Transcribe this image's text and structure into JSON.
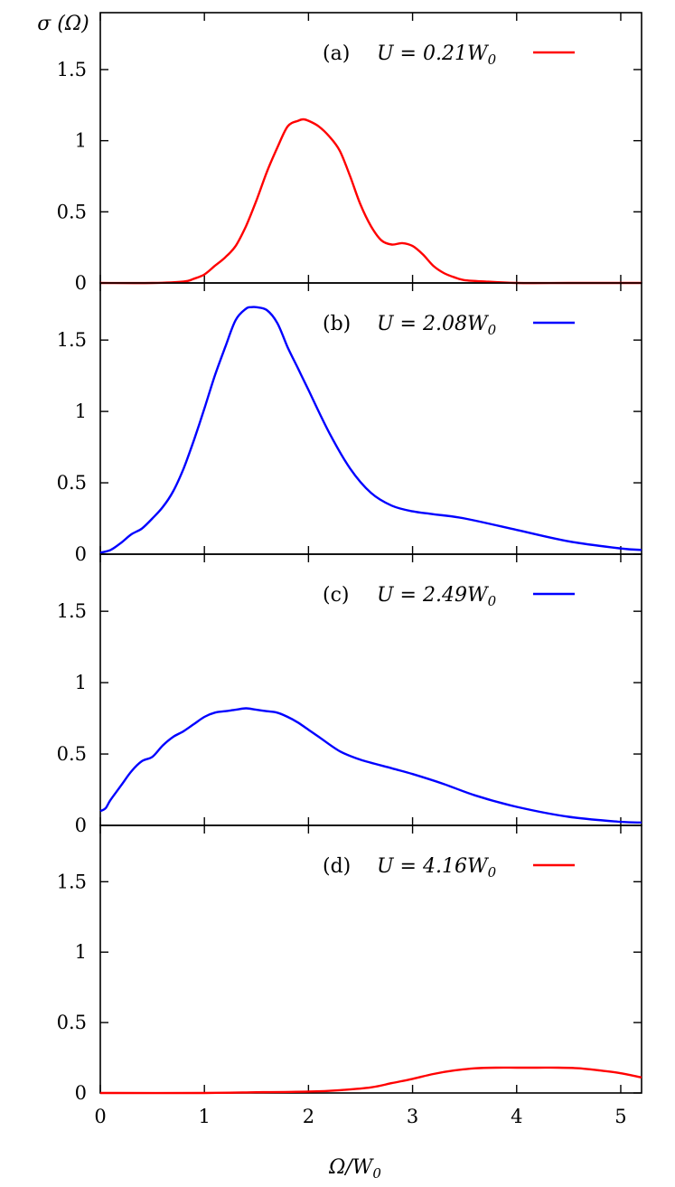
{
  "figure": {
    "ylabel": "σ (Ω)",
    "xlabel": "Ω/W",
    "xlabel_sub": "0",
    "colors": {
      "axis": "#000000",
      "red": "#ff0000",
      "blue": "#0000ff"
    }
  },
  "chart_data": [
    {
      "type": "line",
      "panel_label": "(a)",
      "legend": {
        "prefix": "U = 0.21W",
        "sub": "0",
        "color": "#ff0000",
        "placement": "top-right"
      },
      "xlim": [
        0,
        5.2
      ],
      "ylim": [
        0,
        1.9
      ],
      "yticks": [
        0,
        0.5,
        1,
        1.5
      ],
      "ytick_labels": [
        "0",
        "0.5",
        "1",
        "1.5"
      ],
      "xticks": [
        0,
        1,
        2,
        3,
        4,
        5
      ],
      "series": [
        {
          "color": "#ff0000",
          "x": [
            0.0,
            0.5,
            0.8,
            0.9,
            1.0,
            1.1,
            1.2,
            1.3,
            1.4,
            1.5,
            1.6,
            1.7,
            1.8,
            1.9,
            1.95,
            2.0,
            2.1,
            2.2,
            2.3,
            2.4,
            2.5,
            2.6,
            2.7,
            2.8,
            2.9,
            3.0,
            3.1,
            3.2,
            3.3,
            3.4,
            3.5,
            3.7,
            4.0,
            4.5,
            5.0,
            5.2
          ],
          "y": [
            0.0,
            0.0,
            0.01,
            0.03,
            0.06,
            0.12,
            0.18,
            0.26,
            0.4,
            0.58,
            0.78,
            0.95,
            1.1,
            1.14,
            1.15,
            1.14,
            1.1,
            1.03,
            0.93,
            0.75,
            0.55,
            0.4,
            0.3,
            0.27,
            0.28,
            0.26,
            0.2,
            0.12,
            0.07,
            0.04,
            0.02,
            0.01,
            0.0,
            0.0,
            0.0,
            0.0
          ]
        }
      ]
    },
    {
      "type": "line",
      "panel_label": "(b)",
      "legend": {
        "prefix": "U = 2.08W",
        "sub": "0",
        "color": "#0000ff",
        "placement": "top-right"
      },
      "xlim": [
        0,
        5.2
      ],
      "ylim": [
        0,
        1.9
      ],
      "yticks": [
        0,
        0.5,
        1,
        1.5
      ],
      "ytick_labels": [
        "0",
        "0.5",
        "1",
        "1.5"
      ],
      "xticks": [
        0,
        1,
        2,
        3,
        4,
        5
      ],
      "series": [
        {
          "color": "#0000ff",
          "x": [
            0.0,
            0.1,
            0.2,
            0.3,
            0.4,
            0.5,
            0.6,
            0.7,
            0.8,
            0.9,
            1.0,
            1.1,
            1.2,
            1.3,
            1.4,
            1.45,
            1.5,
            1.6,
            1.7,
            1.8,
            1.9,
            2.0,
            2.2,
            2.4,
            2.6,
            2.8,
            3.0,
            3.2,
            3.5,
            4.0,
            4.5,
            5.0,
            5.2
          ],
          "y": [
            0.01,
            0.03,
            0.08,
            0.14,
            0.18,
            0.25,
            0.33,
            0.44,
            0.6,
            0.8,
            1.02,
            1.25,
            1.45,
            1.64,
            1.72,
            1.73,
            1.73,
            1.71,
            1.62,
            1.45,
            1.3,
            1.15,
            0.85,
            0.6,
            0.43,
            0.34,
            0.3,
            0.28,
            0.25,
            0.17,
            0.09,
            0.04,
            0.03
          ]
        }
      ]
    },
    {
      "type": "line",
      "panel_label": "(c)",
      "legend": {
        "prefix": "U = 2.49W",
        "sub": "0",
        "color": "#0000ff",
        "placement": "top-right"
      },
      "xlim": [
        0,
        5.2
      ],
      "ylim": [
        0,
        1.9
      ],
      "yticks": [
        0,
        0.5,
        1,
        1.5
      ],
      "ytick_labels": [
        "0",
        "0.5",
        "1",
        "1.5"
      ],
      "xticks": [
        0,
        1,
        2,
        3,
        4,
        5
      ],
      "series": [
        {
          "color": "#0000ff",
          "x": [
            0.0,
            0.05,
            0.1,
            0.2,
            0.3,
            0.4,
            0.5,
            0.6,
            0.7,
            0.8,
            0.9,
            1.0,
            1.1,
            1.2,
            1.3,
            1.4,
            1.5,
            1.6,
            1.7,
            1.8,
            1.9,
            2.0,
            2.1,
            2.3,
            2.5,
            2.8,
            3.0,
            3.3,
            3.6,
            4.0,
            4.5,
            5.0,
            5.2
          ],
          "y": [
            0.1,
            0.12,
            0.18,
            0.28,
            0.38,
            0.45,
            0.48,
            0.56,
            0.62,
            0.66,
            0.71,
            0.76,
            0.79,
            0.8,
            0.81,
            0.82,
            0.81,
            0.8,
            0.79,
            0.76,
            0.72,
            0.67,
            0.62,
            0.52,
            0.46,
            0.4,
            0.36,
            0.29,
            0.21,
            0.13,
            0.06,
            0.025,
            0.02
          ]
        }
      ]
    },
    {
      "type": "line",
      "panel_label": "(d)",
      "legend": {
        "prefix": "U = 4.16W",
        "sub": "0",
        "color": "#ff0000",
        "placement": "top-right"
      },
      "xlim": [
        0,
        5.2
      ],
      "ylim": [
        0,
        1.9
      ],
      "yticks": [
        0,
        0.5,
        1,
        1.5
      ],
      "ytick_labels": [
        "0",
        "0.5",
        "1",
        "1.5"
      ],
      "xticks": [
        0,
        1,
        2,
        3,
        4,
        5
      ],
      "xtick_labels": [
        "0",
        "1",
        "2",
        "3",
        "4",
        "5"
      ],
      "series": [
        {
          "color": "#ff0000",
          "x": [
            0.0,
            1.0,
            1.5,
            2.0,
            2.3,
            2.6,
            2.8,
            3.0,
            3.2,
            3.4,
            3.6,
            3.8,
            4.0,
            4.2,
            4.4,
            4.6,
            4.8,
            5.0,
            5.2
          ],
          "y": [
            0.0,
            0.0,
            0.005,
            0.01,
            0.02,
            0.04,
            0.07,
            0.1,
            0.135,
            0.16,
            0.175,
            0.18,
            0.18,
            0.18,
            0.18,
            0.175,
            0.16,
            0.14,
            0.11
          ]
        }
      ]
    }
  ]
}
